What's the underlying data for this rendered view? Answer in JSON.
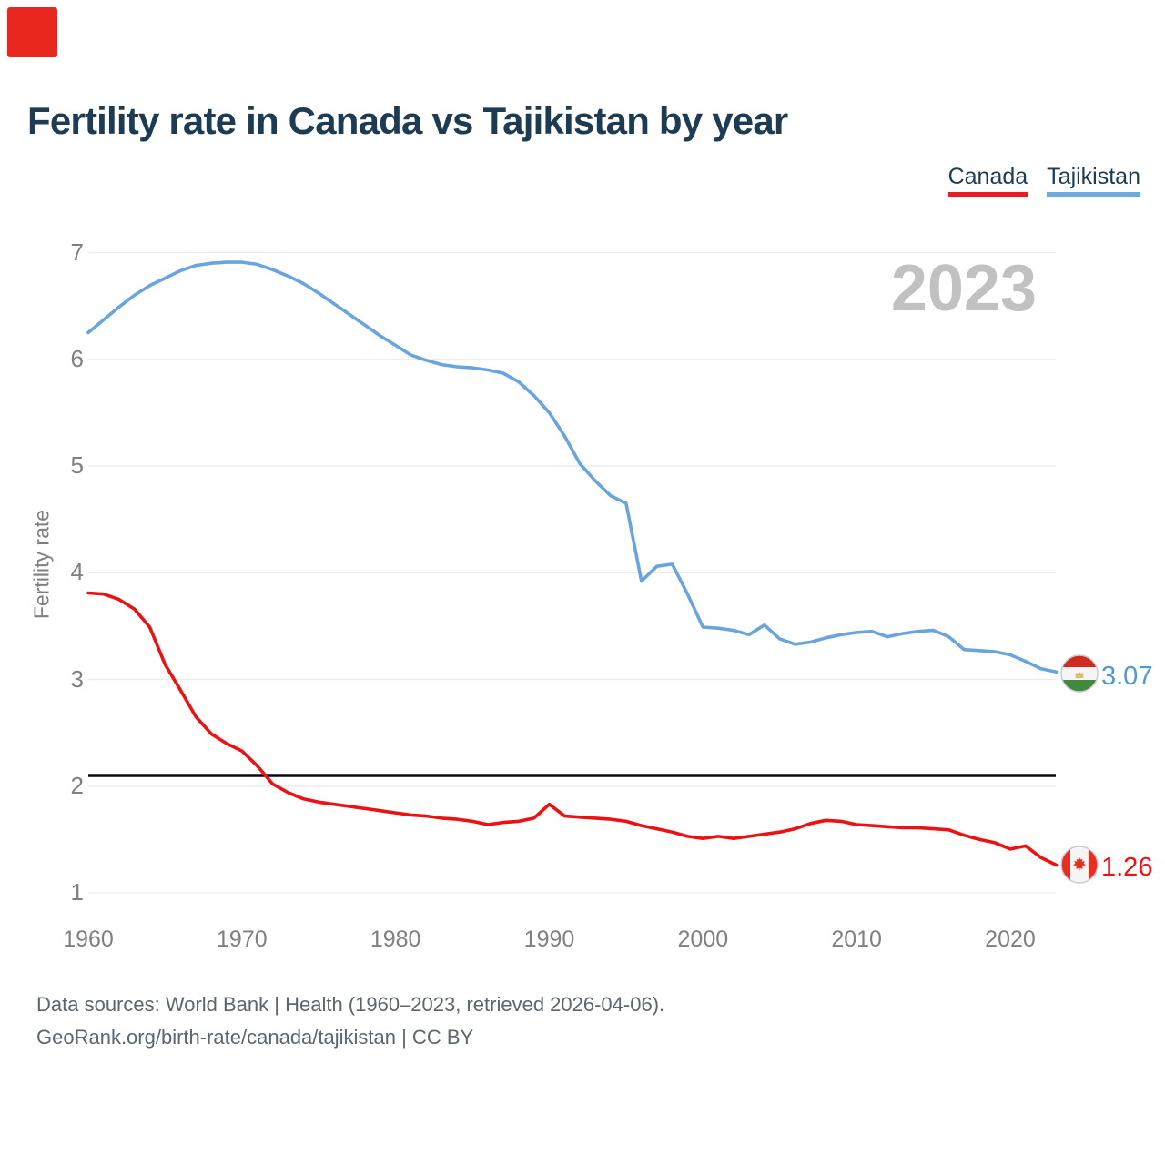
{
  "page": {
    "background": "#ffffff",
    "marker_color": "#e8281e"
  },
  "header": {
    "title": "Fertility rate in Canada vs Tajikistan by year"
  },
  "legend": [
    {
      "label": "Canada",
      "color": "#ed1c24"
    },
    {
      "label": "Tajikistan",
      "color": "#6cabe0"
    }
  ],
  "watermark": "2023",
  "chart_data": {
    "type": "line",
    "title": "Fertility rate in Canada vs Tajikistan by year",
    "xlabel": "",
    "ylabel": "Fertility rate",
    "ylim": [
      1,
      7
    ],
    "yticks": [
      1,
      2,
      3,
      4,
      5,
      6,
      7
    ],
    "xticks": [
      1960,
      1970,
      1980,
      1990,
      2000,
      2010,
      2020
    ],
    "x_range": [
      1960,
      2023
    ],
    "grid": true,
    "legend_position": "top-right",
    "reference_line": {
      "value": 2.1,
      "color": "#0a0a0a"
    },
    "grid_color": "#ebebeb",
    "x": [
      1960,
      1961,
      1962,
      1963,
      1964,
      1965,
      1966,
      1967,
      1968,
      1969,
      1970,
      1971,
      1972,
      1973,
      1974,
      1975,
      1976,
      1977,
      1978,
      1979,
      1980,
      1981,
      1982,
      1983,
      1984,
      1985,
      1986,
      1987,
      1988,
      1989,
      1990,
      1991,
      1992,
      1993,
      1994,
      1995,
      1996,
      1997,
      1998,
      1999,
      2000,
      2001,
      2002,
      2003,
      2004,
      2005,
      2006,
      2007,
      2008,
      2009,
      2010,
      2011,
      2012,
      2013,
      2014,
      2015,
      2016,
      2017,
      2018,
      2019,
      2020,
      2021,
      2022,
      2023
    ],
    "series": [
      {
        "name": "Canada",
        "color": "#ee1111",
        "end_label": "1.26",
        "flag": "canada-flag",
        "values": [
          3.81,
          3.8,
          3.75,
          3.66,
          3.49,
          3.14,
          2.9,
          2.65,
          2.49,
          2.4,
          2.33,
          2.19,
          2.02,
          1.94,
          1.88,
          1.85,
          1.83,
          1.81,
          1.79,
          1.77,
          1.75,
          1.73,
          1.72,
          1.7,
          1.69,
          1.67,
          1.64,
          1.66,
          1.67,
          1.7,
          1.83,
          1.72,
          1.71,
          1.7,
          1.69,
          1.67,
          1.63,
          1.6,
          1.57,
          1.53,
          1.51,
          1.53,
          1.51,
          1.53,
          1.55,
          1.57,
          1.6,
          1.65,
          1.68,
          1.67,
          1.64,
          1.63,
          1.62,
          1.61,
          1.61,
          1.6,
          1.59,
          1.54,
          1.5,
          1.47,
          1.41,
          1.44,
          1.33,
          1.26
        ]
      },
      {
        "name": "Tajikistan",
        "color": "#6aa4de",
        "end_label": "3.07",
        "flag": "tajikistan-flag",
        "values": [
          6.25,
          6.37,
          6.49,
          6.6,
          6.69,
          6.76,
          6.83,
          6.88,
          6.9,
          6.91,
          6.91,
          6.89,
          6.84,
          6.78,
          6.71,
          6.62,
          6.52,
          6.42,
          6.32,
          6.22,
          6.13,
          6.04,
          5.99,
          5.95,
          5.93,
          5.92,
          5.9,
          5.87,
          5.79,
          5.66,
          5.5,
          5.28,
          5.02,
          4.86,
          4.72,
          4.65,
          3.92,
          4.06,
          4.08,
          3.8,
          3.49,
          3.48,
          3.46,
          3.42,
          3.51,
          3.38,
          3.33,
          3.35,
          3.39,
          3.42,
          3.44,
          3.45,
          3.4,
          3.43,
          3.45,
          3.46,
          3.4,
          3.28,
          3.27,
          3.26,
          3.23,
          3.17,
          3.1,
          3.07
        ]
      }
    ]
  },
  "footer": {
    "line1": "Data sources: World Bank | Health (1960–2023, retrieved 2026-04-06).",
    "line2": "GeoRank.org/birth-rate/canada/tajikistan | CC BY"
  }
}
